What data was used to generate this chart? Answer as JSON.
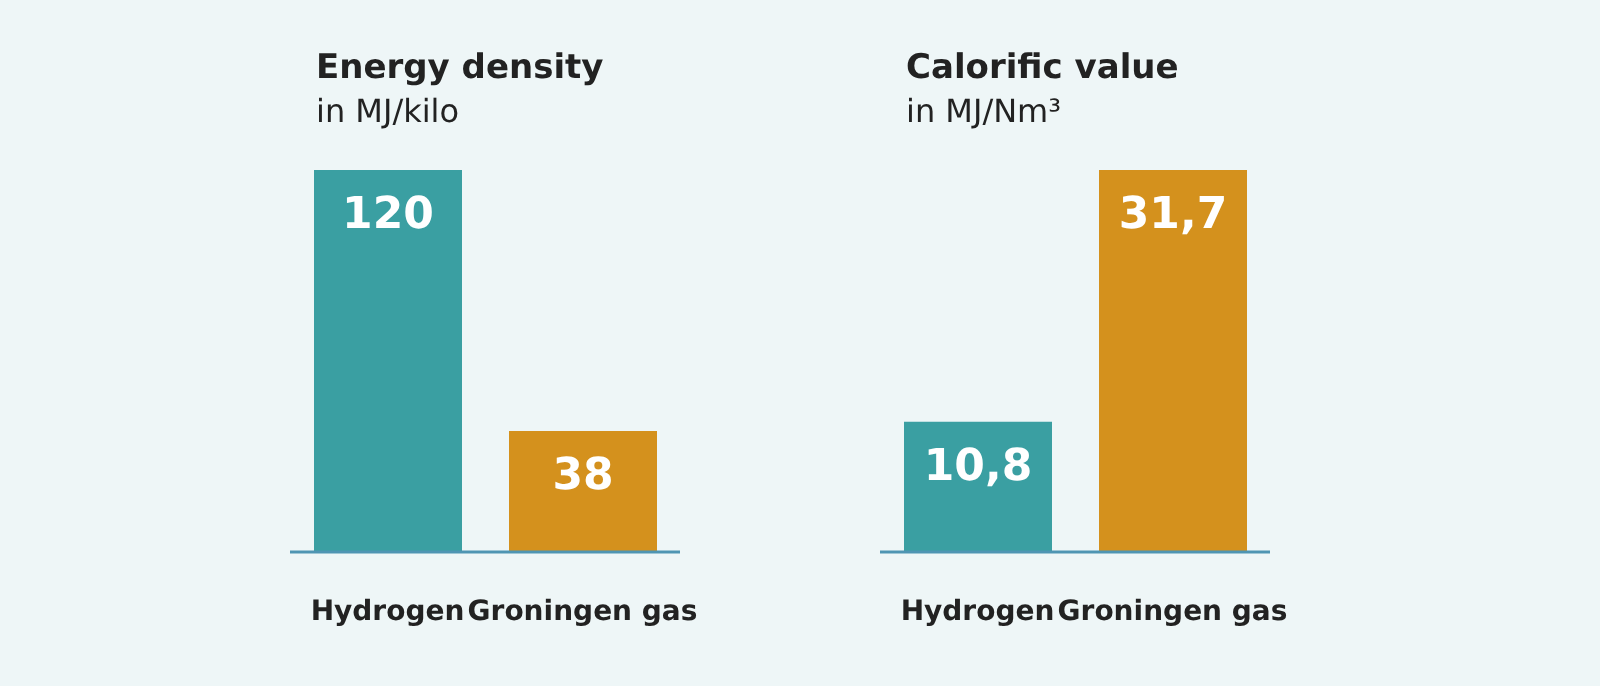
{
  "chart_data": [
    {
      "type": "bar",
      "title": "Energy density",
      "subtitle": "in MJ/kilo",
      "categories": [
        "Hydrogen",
        "Groningen gas"
      ],
      "values": [
        120,
        38
      ],
      "colors": [
        "#3a9fa2",
        "#d4911d"
      ],
      "value_labels": [
        "120",
        "38"
      ]
    },
    {
      "type": "bar",
      "title": "Calorific value",
      "subtitle": "in MJ/Nm³",
      "categories": [
        "Hydrogen",
        "Groningen gas"
      ],
      "values": [
        10.8,
        31.7
      ],
      "colors": [
        "#3a9fa2",
        "#d4911d"
      ],
      "value_labels": [
        "10,8",
        "31,7"
      ]
    }
  ]
}
